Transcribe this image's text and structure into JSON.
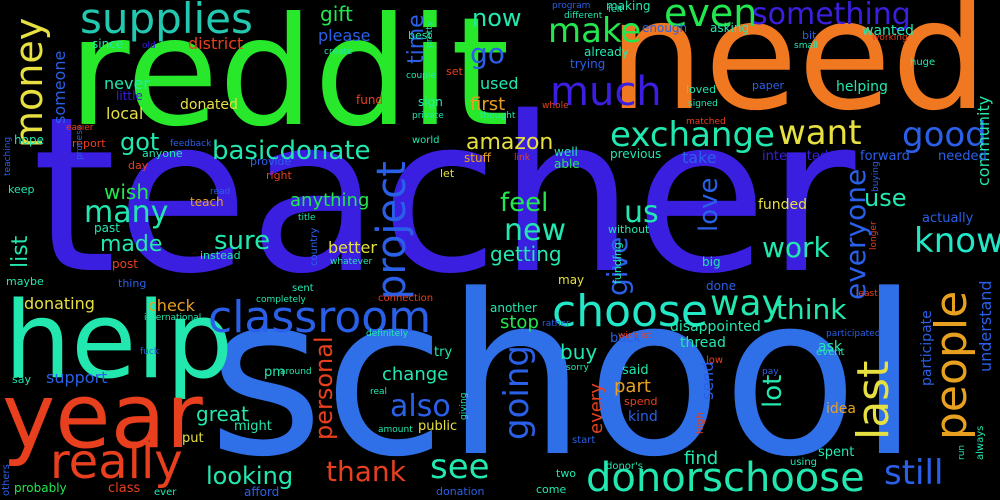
{
  "background": "#000000",
  "words": [
    {
      "text": "teacher",
      "color": "#3a1fe0"
    },
    {
      "text": "school",
      "color": "#2f6fe8"
    },
    {
      "text": "reddit",
      "color": "#27e82a"
    },
    {
      "text": "need",
      "color": "#f07820"
    },
    {
      "text": "help",
      "color": "#22e8b0"
    },
    {
      "text": "year",
      "color": "#e8401e"
    },
    {
      "text": "supplies",
      "color": "#22c8b0"
    },
    {
      "text": "money",
      "color": "#e6e040"
    },
    {
      "text": "classroom",
      "color": "#2a60e8"
    },
    {
      "text": "choose",
      "color": "#22e8c8"
    },
    {
      "text": "donorschoose",
      "color": "#22e8b0"
    },
    {
      "text": "really",
      "color": "#e8401e"
    },
    {
      "text": "project",
      "color": "#2a60e8"
    },
    {
      "text": "last",
      "color": "#e6e040"
    },
    {
      "text": "much",
      "color": "#3a1fe0"
    },
    {
      "text": "make",
      "color": "#22e850"
    },
    {
      "text": "exchange",
      "color": "#22e8b0"
    },
    {
      "text": "want",
      "color": "#e6e040"
    },
    {
      "text": "even",
      "color": "#22e850"
    },
    {
      "text": "something",
      "color": "#3a1fe0"
    },
    {
      "text": "people",
      "color": "#e8a020"
    },
    {
      "text": "good",
      "color": "#2a60e8"
    },
    {
      "text": "know",
      "color": "#22e8c8"
    },
    {
      "text": "basicdonate",
      "color": "#22e8b0"
    },
    {
      "text": "going",
      "color": "#2a60e8"
    },
    {
      "text": "still",
      "color": "#2a60e8"
    },
    {
      "text": "see",
      "color": "#22e8b0"
    },
    {
      "text": "thank",
      "color": "#e8401e"
    },
    {
      "text": "also",
      "color": "#2a60e8"
    },
    {
      "text": "personal",
      "color": "#e8401e"
    },
    {
      "text": "way",
      "color": "#22e8b0"
    },
    {
      "text": "think",
      "color": "#22e8b0"
    },
    {
      "text": "everyone",
      "color": "#2a60e8"
    },
    {
      "text": "new",
      "color": "#22e8b0"
    },
    {
      "text": "feel",
      "color": "#22e850"
    },
    {
      "text": "us",
      "color": "#22e8b0"
    },
    {
      "text": "go",
      "color": "#2a60e8"
    },
    {
      "text": "now",
      "color": "#22e8b0"
    },
    {
      "text": "gift",
      "color": "#22e850"
    },
    {
      "text": "time",
      "color": "#2a60e8"
    },
    {
      "text": "please",
      "color": "#2a60e8"
    },
    {
      "text": "district",
      "color": "#e8401e"
    },
    {
      "text": "amazon",
      "color": "#e6e040"
    },
    {
      "text": "sure",
      "color": "#22e8b0"
    },
    {
      "text": "many",
      "color": "#22e8b0"
    },
    {
      "text": "made",
      "color": "#22e8b0"
    },
    {
      "text": "got",
      "color": "#22e8b0"
    },
    {
      "text": "work",
      "color": "#22e8b0"
    },
    {
      "text": "use",
      "color": "#22e8b0"
    },
    {
      "text": "give",
      "color": "#2a60e8"
    },
    {
      "text": "love",
      "color": "#2a60e8"
    },
    {
      "text": "getting",
      "color": "#22e8b0"
    },
    {
      "text": "lot",
      "color": "#22e8b0"
    },
    {
      "text": "looking",
      "color": "#22e8b0"
    },
    {
      "text": "great",
      "color": "#22e8b0"
    },
    {
      "text": "support",
      "color": "#2a60e8"
    },
    {
      "text": "change",
      "color": "#22e8b0"
    },
    {
      "text": "part",
      "color": "#e8a020"
    },
    {
      "text": "buy",
      "color": "#22e8b0"
    },
    {
      "text": "stop",
      "color": "#22e850"
    },
    {
      "text": "find",
      "color": "#22e8b0"
    },
    {
      "text": "list",
      "color": "#22e8b0"
    },
    {
      "text": "wish",
      "color": "#22e850"
    },
    {
      "text": "local",
      "color": "#e6e040"
    },
    {
      "text": "never",
      "color": "#22e8b0"
    },
    {
      "text": "someone",
      "color": "#2a60e8"
    },
    {
      "text": "first",
      "color": "#e8a020"
    },
    {
      "text": "used",
      "color": "#22e8b0"
    },
    {
      "text": "anything",
      "color": "#22e850"
    },
    {
      "text": "every",
      "color": "#e8401e"
    },
    {
      "text": "send",
      "color": "#2a60e8"
    },
    {
      "text": "take",
      "color": "#2a60e8"
    },
    {
      "text": "understand",
      "color": "#2a60e8"
    },
    {
      "text": "community",
      "color": "#22e8b0"
    },
    {
      "text": "participate",
      "color": "#2a60e8"
    },
    {
      "text": "donated",
      "color": "#e6e040"
    },
    {
      "text": "check",
      "color": "#e8a020"
    },
    {
      "text": "donating",
      "color": "#e6e040"
    },
    {
      "text": "better",
      "color": "#e6e040"
    },
    {
      "text": "helping",
      "color": "#22e8b0"
    },
    {
      "text": "thread",
      "color": "#22e8b0"
    },
    {
      "text": "disappointed",
      "color": "#22e8b0"
    },
    {
      "text": "funded",
      "color": "#e6e040"
    },
    {
      "text": "interested",
      "color": "#3a1fe0"
    },
    {
      "text": "forward",
      "color": "#2a60e8"
    },
    {
      "text": "needed",
      "color": "#2a60e8"
    },
    {
      "text": "actually",
      "color": "#2a60e8"
    },
    {
      "text": "ask",
      "color": "#22e8b0"
    },
    {
      "text": "spent",
      "color": "#22e8b0"
    },
    {
      "text": "event",
      "color": "#22e8b0"
    },
    {
      "text": "idea",
      "color": "#e8a020"
    },
    {
      "text": "kind",
      "color": "#2a60e8"
    },
    {
      "text": "said",
      "color": "#22e8b0"
    },
    {
      "text": "spend",
      "color": "#e8401e"
    },
    {
      "text": "back",
      "color": "#2a60e8"
    },
    {
      "text": "try",
      "color": "#22e8b0"
    },
    {
      "text": "pm",
      "color": "#22e8b0"
    },
    {
      "text": "around",
      "color": "#22e8b0"
    },
    {
      "text": "public",
      "color": "#e6e040"
    },
    {
      "text": "might",
      "color": "#22e8b0"
    },
    {
      "text": "put",
      "color": "#e6e040"
    },
    {
      "text": "class",
      "color": "#e8401e"
    },
    {
      "text": "probably",
      "color": "#22e850"
    },
    {
      "text": "afford",
      "color": "#2a60e8"
    },
    {
      "text": "donation",
      "color": "#2a60e8"
    },
    {
      "text": "come",
      "color": "#22e8b0"
    },
    {
      "text": "two",
      "color": "#22e8b0"
    },
    {
      "text": "another",
      "color": "#22e8b0"
    },
    {
      "text": "may",
      "color": "#e6e040"
    },
    {
      "text": "done",
      "color": "#2a60e8"
    },
    {
      "text": "big",
      "color": "#22e8b0"
    },
    {
      "text": "without",
      "color": "#22e8b0"
    },
    {
      "text": "funding",
      "color": "#22e8b0"
    },
    {
      "text": "previous",
      "color": "#22e8b0"
    },
    {
      "text": "well",
      "color": "#22e8b0"
    },
    {
      "text": "able",
      "color": "#22e850"
    },
    {
      "text": "stuff",
      "color": "#e8a020"
    },
    {
      "text": "let",
      "color": "#e6e040"
    },
    {
      "text": "world",
      "color": "#22e8b0"
    },
    {
      "text": "sign",
      "color": "#22e8b0"
    },
    {
      "text": "fund",
      "color": "#e8401e"
    },
    {
      "text": "trying",
      "color": "#2a60e8"
    },
    {
      "text": "already",
      "color": "#22e8b0"
    },
    {
      "text": "enough",
      "color": "#2a60e8"
    },
    {
      "text": "asking",
      "color": "#22e8b0"
    },
    {
      "text": "making",
      "color": "#22e8b0"
    },
    {
      "text": "wanted",
      "color": "#22e8b0"
    },
    {
      "text": "bit",
      "color": "#2a60e8"
    },
    {
      "text": "loved",
      "color": "#22e8b0"
    },
    {
      "text": "paper",
      "color": "#2a60e8"
    },
    {
      "text": "since",
      "color": "#22e8b0"
    },
    {
      "text": "best",
      "color": "#22e8b0"
    },
    {
      "text": "set",
      "color": "#e8401e"
    },
    {
      "text": "little",
      "color": "#3a1fe0"
    },
    {
      "text": "hope",
      "color": "#22e8b0"
    },
    {
      "text": "report",
      "color": "#e8401e"
    },
    {
      "text": "anyone",
      "color": "#22e8b0"
    },
    {
      "text": "day",
      "color": "#e8401e"
    },
    {
      "text": "provide",
      "color": "#2a60e8"
    },
    {
      "text": "right",
      "color": "#e8401e"
    },
    {
      "text": "teach",
      "color": "#e8a020"
    },
    {
      "text": "past",
      "color": "#22e8b0"
    },
    {
      "text": "instead",
      "color": "#22e8b0"
    },
    {
      "text": "post",
      "color": "#e8401e"
    },
    {
      "text": "thing",
      "color": "#2a60e8"
    },
    {
      "text": "maybe",
      "color": "#22e8b0"
    },
    {
      "text": "keep",
      "color": "#22e8b0"
    },
    {
      "text": "say",
      "color": "#22e8b0"
    },
    {
      "text": "sent",
      "color": "#22e8b0"
    },
    {
      "text": "connection",
      "color": "#e8401e"
    },
    {
      "text": "huge",
      "color": "#22e8b0"
    },
    {
      "text": "working",
      "color": "#e8401e"
    },
    {
      "text": "others",
      "color": "#2a60e8"
    },
    {
      "text": "ever",
      "color": "#22e8b0"
    },
    {
      "text": "donor's",
      "color": "#22e8b0"
    },
    {
      "text": "using",
      "color": "#22e8b0"
    },
    {
      "text": "start",
      "color": "#2a60e8"
    },
    {
      "text": "always",
      "color": "#22e8b0"
    },
    {
      "text": "high",
      "color": "#e8401e"
    },
    {
      "text": "low",
      "color": "#e8401e"
    },
    {
      "text": "pay",
      "color": "#2a60e8"
    },
    {
      "text": "least",
      "color": "#e8401e"
    },
    {
      "text": "fuck",
      "color": "#2a60e8"
    },
    {
      "text": "real",
      "color": "#22e8b0"
    },
    {
      "text": "definitely",
      "color": "#22e8b0"
    },
    {
      "text": "international",
      "color": "#22e8b0"
    },
    {
      "text": "completely",
      "color": "#22e8b0"
    },
    {
      "text": "whatever",
      "color": "#22e8b0"
    },
    {
      "text": "country",
      "color": "#2a60e8"
    },
    {
      "text": "title",
      "color": "#22e8b0"
    },
    {
      "text": "read",
      "color": "#2a60e8"
    },
    {
      "text": "feedback",
      "color": "#2a60e8"
    },
    {
      "text": "process",
      "color": "#2a60e8"
    },
    {
      "text": "easier",
      "color": "#e8401e"
    },
    {
      "text": "teaching",
      "color": "#2a60e8"
    },
    {
      "text": "create",
      "color": "#22e8b0"
    },
    {
      "text": "old",
      "color": "#3a1fe0"
    },
    {
      "text": "couple",
      "color": "#22e8b0"
    },
    {
      "text": "private",
      "color": "#22e8b0"
    },
    {
      "text": "pretty",
      "color": "#22e8b0"
    },
    {
      "text": "whole",
      "color": "#e8401e"
    },
    {
      "text": "thought",
      "color": "#22e8b0"
    },
    {
      "text": "program",
      "color": "#2a60e8"
    },
    {
      "text": "different",
      "color": "#22e8b0"
    },
    {
      "text": "felt",
      "color": "#22e8b0"
    },
    {
      "text": "signed",
      "color": "#22e8b0"
    },
    {
      "text": "matched",
      "color": "#e8401e"
    },
    {
      "text": "small",
      "color": "#22e8b0"
    },
    {
      "text": "link",
      "color": "#e8401e"
    },
    {
      "text": "wishlist",
      "color": "#e8401e"
    },
    {
      "text": "sorry",
      "color": "#22e8b0"
    },
    {
      "text": "rather",
      "color": "#2a60e8"
    },
    {
      "text": "amount",
      "color": "#22e8b0"
    },
    {
      "text": "giving",
      "color": "#22e8b0"
    },
    {
      "text": "buying",
      "color": "#2a60e8"
    },
    {
      "text": "longer",
      "color": "#e8401e"
    },
    {
      "text": "participated",
      "color": "#2a60e8"
    },
    {
      "text": "run",
      "color": "#22e8b0"
    }
  ]
}
